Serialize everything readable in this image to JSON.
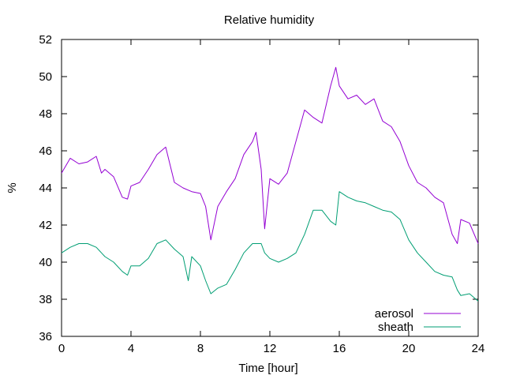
{
  "chart_data": {
    "type": "line",
    "title": "Relative humidity",
    "xlabel": "Time [hour]",
    "ylabel": "%",
    "xlim": [
      0,
      24
    ],
    "ylim": [
      36,
      52
    ],
    "xticks": [
      0,
      4,
      8,
      12,
      16,
      20,
      24
    ],
    "yticks": [
      36,
      38,
      40,
      42,
      44,
      46,
      48,
      50,
      52
    ],
    "grid": false,
    "legend_position": "bottom-right",
    "series": [
      {
        "name": "aerosol",
        "color": "#9400d3",
        "x": [
          0,
          0.5,
          1,
          1.5,
          2,
          2.3,
          2.5,
          3,
          3.5,
          3.8,
          4,
          4.5,
          5,
          5.5,
          6,
          6.5,
          7,
          7.5,
          8,
          8.3,
          8.6,
          9,
          9.5,
          10,
          10.5,
          11,
          11.2,
          11.5,
          11.7,
          12,
          12.5,
          13,
          13.5,
          14,
          14.5,
          15,
          15.5,
          15.8,
          16,
          16.5,
          17,
          17.5,
          18,
          18.5,
          19,
          19.5,
          20,
          20.5,
          21,
          21.5,
          22,
          22.5,
          22.8,
          23,
          23.5,
          24
        ],
        "y": [
          44.8,
          45.6,
          45.3,
          45.4,
          45.7,
          44.8,
          45.0,
          44.6,
          43.5,
          43.4,
          44.1,
          44.3,
          45.0,
          45.8,
          46.2,
          44.3,
          44.0,
          43.8,
          43.7,
          43.0,
          41.2,
          43.0,
          43.8,
          44.5,
          45.8,
          46.5,
          47.0,
          45.0,
          41.8,
          44.5,
          44.2,
          44.8,
          46.5,
          48.2,
          47.8,
          47.5,
          49.5,
          50.5,
          49.5,
          48.8,
          49.0,
          48.5,
          48.8,
          47.6,
          47.3,
          46.5,
          45.2,
          44.3,
          44.0,
          43.5,
          43.2,
          41.5,
          41.0,
          42.3,
          42.1,
          41.0
        ]
      },
      {
        "name": "sheath",
        "color": "#009e73",
        "x": [
          0,
          0.5,
          1,
          1.5,
          2,
          2.5,
          3,
          3.5,
          3.8,
          4,
          4.5,
          5,
          5.5,
          6,
          6.5,
          7,
          7.3,
          7.5,
          8,
          8.3,
          8.6,
          9,
          9.5,
          10,
          10.5,
          11,
          11.5,
          11.7,
          12,
          12.5,
          13,
          13.5,
          14,
          14.5,
          15,
          15.5,
          15.8,
          16,
          16.5,
          17,
          17.5,
          18,
          18.5,
          19,
          19.5,
          20,
          20.5,
          21,
          21.5,
          22,
          22.5,
          22.8,
          23,
          23.5,
          24
        ],
        "y": [
          40.5,
          40.8,
          41.0,
          41.0,
          40.8,
          40.3,
          40.0,
          39.5,
          39.3,
          39.8,
          39.8,
          40.2,
          41.0,
          41.2,
          40.7,
          40.3,
          39.0,
          40.3,
          39.8,
          39.0,
          38.3,
          38.6,
          38.8,
          39.6,
          40.5,
          41.0,
          41.0,
          40.5,
          40.2,
          40.0,
          40.2,
          40.5,
          41.5,
          42.8,
          42.8,
          42.2,
          42.0,
          43.8,
          43.5,
          43.3,
          43.2,
          43.0,
          42.8,
          42.7,
          42.3,
          41.2,
          40.5,
          40.0,
          39.5,
          39.3,
          39.2,
          38.5,
          38.2,
          38.3,
          37.9
        ]
      }
    ]
  }
}
